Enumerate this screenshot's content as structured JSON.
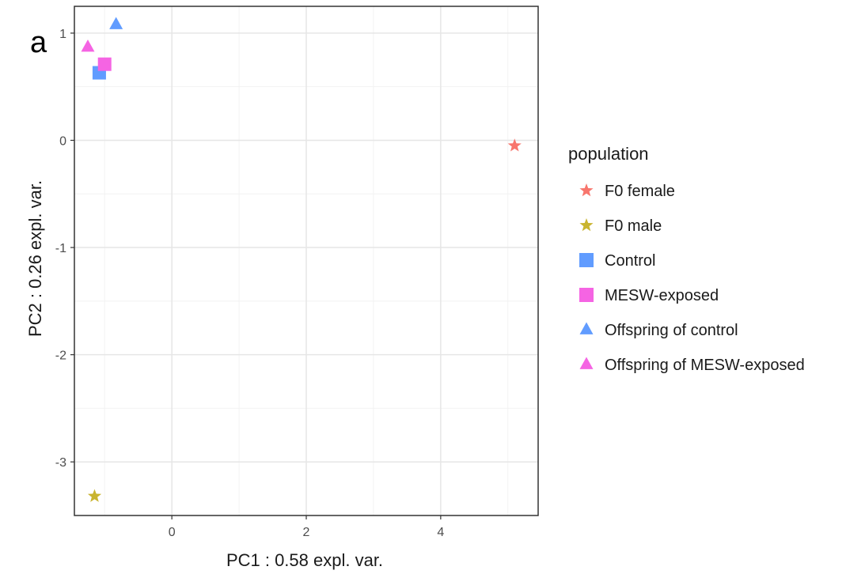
{
  "panel_label": "a",
  "chart_data": {
    "type": "scatter",
    "xlabel": "PC1 : 0.58 expl. var.",
    "ylabel": "PC2 : 0.26 expl. var.",
    "xlim": [
      -1.45,
      5.45
    ],
    "ylim": [
      -3.5,
      1.25
    ],
    "x_ticks": [
      0,
      2,
      4
    ],
    "x_tick_labels": [
      "0",
      "2",
      "4"
    ],
    "y_ticks": [
      1,
      0,
      -1,
      -2,
      -3
    ],
    "y_tick_labels": [
      "1",
      "0",
      "-1",
      "-2",
      "-3"
    ],
    "grid": true,
    "legend_position": "right",
    "legend_title": "population",
    "series": [
      {
        "name": "F0 female",
        "shape": "star",
        "color": "#F8766D",
        "points": [
          [
            5.1,
            -0.05
          ]
        ]
      },
      {
        "name": "F0 male",
        "shape": "star",
        "color": "#C9B42F",
        "points": [
          [
            -1.15,
            -3.32
          ]
        ]
      },
      {
        "name": "Control",
        "shape": "square",
        "color": "#619CFF",
        "points": [
          [
            -1.08,
            0.63
          ]
        ]
      },
      {
        "name": "MESW-exposed",
        "shape": "square",
        "color": "#F564E3",
        "points": [
          [
            -1.0,
            0.71
          ]
        ]
      },
      {
        "name": "Offspring of control",
        "shape": "triangle",
        "color": "#619CFF",
        "points": [
          [
            -0.83,
            1.08
          ]
        ]
      },
      {
        "name": "Offspring of MESW-exposed",
        "shape": "triangle",
        "color": "#F564E3",
        "points": [
          [
            -1.25,
            0.87
          ]
        ]
      }
    ]
  }
}
